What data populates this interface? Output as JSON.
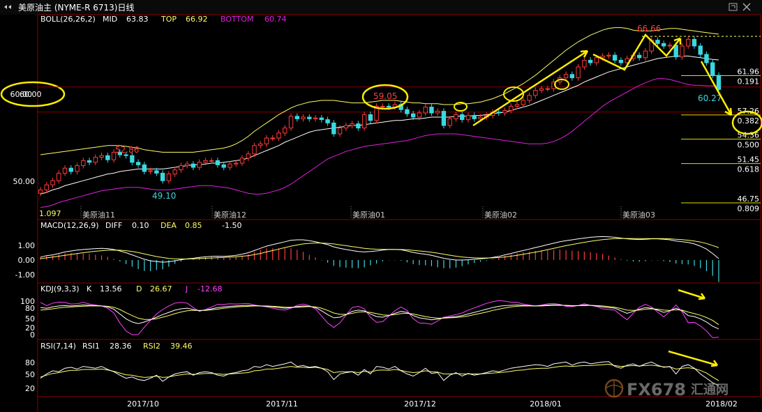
{
  "window": {
    "nav_icon": "back-forward-arrows-icon",
    "title": "美原油主 (NYME-R 6713)日线",
    "controls": [
      "restore-icon",
      "close-icon"
    ]
  },
  "colors": {
    "background": "#000000",
    "grid": "#8b0000",
    "up_candle": "#ff3b3b",
    "down_candle": "#3ad8e0",
    "mid": "#ffffff",
    "top": "#ffff66",
    "bottom": "#e020e0",
    "yellow_annot": "#ffee00",
    "label_yellow": "#e0e000",
    "label_red": "#ff4040",
    "label_cyan": "#3ad8e0",
    "label_white": "#ffffff",
    "label_magenta": "#ff40ff"
  },
  "main": {
    "indicator": "BOLL(26,26,2)",
    "legend": [
      {
        "name": "MID",
        "value": "63.83"
      },
      {
        "name": "TOP",
        "value": "66.92"
      },
      {
        "name": "BOTTOM",
        "value": "60.74"
      }
    ],
    "price_axis_labels": [
      "60.00",
      "50.00"
    ],
    "annotations": {
      "high_66": "66.66",
      "high_59": "59.05",
      "high_52": "52.86",
      "low_49": "49.10",
      "last": "60.27",
      "left_bottom": "1.097"
    },
    "fib_levels": [
      {
        "price": "61.96",
        "ratio": "0.191"
      },
      {
        "price": "57.26",
        "ratio": "0.382"
      },
      {
        "price": "54.36",
        "ratio": "0.500"
      },
      {
        "price": "51.45",
        "ratio": "0.618"
      },
      {
        "price": "46.75",
        "ratio": "0.809"
      }
    ],
    "contract_labels": [
      "美原油11",
      "美原油12",
      "美原油01",
      "美原油02",
      "美原油03"
    ],
    "circled_price": "60.00"
  },
  "macd": {
    "indicator": "MACD(12,26,9)",
    "legend": [
      {
        "name": "DIFF",
        "value": "0.10"
      },
      {
        "name": "DEA",
        "value": "0.85"
      },
      {
        "name": "",
        "value": "-1.50"
      }
    ],
    "axis_labels": [
      "1.00",
      "0.00",
      "-1.00"
    ]
  },
  "kdj": {
    "indicator": "KDJ(9,3,3)",
    "legend": [
      {
        "name": "K",
        "value": "13.56"
      },
      {
        "name": "D",
        "value": "26.67"
      },
      {
        "name": "J",
        "value": "-12.68"
      }
    ],
    "axis_labels": [
      "100",
      "80",
      "50",
      "20",
      "0"
    ]
  },
  "rsi": {
    "indicator": "RSI(7,14)",
    "legend": [
      {
        "name": "RSI1",
        "value": "28.36"
      },
      {
        "name": "RSI2",
        "value": "39.46"
      }
    ],
    "axis_labels": [
      "80",
      "50",
      "20"
    ]
  },
  "time_axis": [
    "2017/10",
    "2017/11",
    "2017/12",
    "2018/01",
    "2018/02"
  ],
  "watermark": {
    "text": "FX678",
    "cn": "汇通网",
    "icon": "globe-logo-icon"
  },
  "chart_data": {
    "type": "candlestick",
    "ylim": [
      46,
      68
    ],
    "close_series": [
      48.3,
      48.9,
      49.4,
      50.3,
      50.9,
      50.5,
      51.2,
      51.8,
      51.6,
      52.2,
      52.4,
      51.9,
      52.8,
      52.5,
      52.4,
      51.6,
      51.3,
      50.5,
      50.6,
      50.3,
      49.4,
      50.2,
      50.7,
      51.2,
      51.4,
      51.0,
      51.6,
      51.8,
      51.8,
      51.3,
      51.0,
      51.4,
      51.5,
      52.1,
      52.6,
      53.6,
      53.8,
      54.5,
      54.5,
      55.1,
      55.7,
      57.1,
      56.8,
      57.0,
      56.8,
      56.9,
      56.7,
      56.3,
      55.0,
      55.7,
      56.0,
      56.2,
      55.7,
      57.3,
      56.6,
      58.3,
      58.3,
      58.2,
      58.5,
      57.9,
      57.4,
      57.0,
      57.5,
      58.2,
      57.5,
      57.7,
      56.0,
      56.8,
      57.3,
      56.7,
      57.2,
      56.8,
      57.0,
      57.2,
      57.6,
      57.5,
      57.8,
      58.3,
      58.5,
      59.0,
      59.6,
      60.2,
      60.4,
      60.4,
      61.2,
      61.7,
      62.1,
      61.7,
      63.0,
      63.8,
      63.5,
      64.1,
      64.3,
      64.4,
      63.8,
      63.5,
      64.0,
      64.4,
      64.1,
      64.9,
      66.2,
      65.8,
      65.5,
      65.6,
      64.2,
      65.5,
      66.3,
      65.5,
      64.5,
      63.5,
      62.0,
      60.3
    ],
    "boll_mid": [
      47.8,
      48.0,
      48.3,
      48.5,
      48.8,
      49.0,
      49.2,
      49.4,
      49.6,
      49.8,
      50.0,
      50.2,
      50.3,
      50.5,
      50.6,
      50.7,
      50.8,
      50.8,
      50.8,
      50.8,
      50.8,
      50.9,
      51.0,
      51.1,
      51.2,
      51.3,
      51.3,
      51.4,
      51.5,
      51.5,
      51.6,
      51.7,
      51.8,
      51.9,
      52.1,
      52.4,
      52.7,
      53.0,
      53.3,
      53.6,
      54.0,
      54.3,
      54.6,
      54.9,
      55.2,
      55.4,
      55.5,
      55.6,
      55.7,
      55.8,
      55.9,
      56.0,
      56.0,
      56.1,
      56.2,
      56.3,
      56.4,
      56.5,
      56.6,
      56.6,
      56.7,
      56.8,
      56.8,
      56.9,
      57.0,
      57.0,
      57.0,
      57.0,
      57.1,
      57.1,
      57.1,
      57.2,
      57.2,
      57.3,
      57.4,
      57.5,
      57.6,
      57.8,
      58.0,
      58.2,
      58.4,
      58.7,
      59.0,
      59.3,
      59.6,
      59.9,
      60.2,
      60.5,
      60.8,
      61.2,
      61.5,
      61.8,
      62.1,
      62.4,
      62.6,
      62.8,
      63.0,
      63.2,
      63.4,
      63.6,
      63.8,
      64.0,
      64.1,
      64.2,
      64.3,
      64.3,
      64.3,
      64.2,
      64.1,
      64.0,
      63.9,
      63.83
    ],
    "boll_top": [
      52.5,
      52.6,
      52.7,
      52.8,
      52.9,
      53.0,
      53.1,
      53.2,
      53.3,
      53.4,
      53.5,
      53.6,
      53.6,
      53.6,
      53.5,
      53.4,
      53.3,
      53.1,
      53.0,
      52.9,
      52.8,
      52.8,
      52.8,
      52.8,
      52.8,
      52.8,
      52.9,
      53.0,
      53.1,
      53.2,
      53.3,
      53.5,
      53.8,
      54.2,
      54.7,
      55.3,
      55.8,
      56.3,
      56.8,
      57.3,
      57.7,
      58.1,
      58.4,
      58.6,
      58.8,
      58.9,
      59.0,
      59.0,
      59.0,
      58.9,
      58.8,
      58.7,
      58.7,
      58.7,
      58.8,
      58.9,
      59.0,
      59.0,
      59.0,
      58.9,
      58.8,
      58.7,
      58.7,
      58.6,
      58.6,
      58.6,
      58.5,
      58.5,
      58.5,
      58.6,
      58.6,
      58.7,
      58.8,
      59.0,
      59.2,
      59.5,
      59.8,
      60.2,
      60.6,
      61.0,
      61.5,
      62.0,
      62.6,
      63.2,
      63.8,
      64.4,
      65.0,
      65.5,
      66.0,
      66.4,
      66.8,
      67.1,
      67.4,
      67.6,
      67.7,
      67.7,
      67.6,
      67.4,
      67.3,
      67.3,
      67.3,
      67.4,
      67.5,
      67.6,
      67.6,
      67.5,
      67.4,
      67.3,
      67.2,
      67.1,
      67.0,
      66.92
    ],
    "boll_bottom": [
      46.2,
      46.3,
      46.5,
      46.8,
      47.0,
      47.2,
      47.4,
      47.6,
      47.8,
      48.0,
      48.2,
      48.3,
      48.4,
      48.5,
      48.6,
      48.6,
      48.6,
      48.5,
      48.4,
      48.3,
      48.3,
      48.3,
      48.4,
      48.5,
      48.6,
      48.7,
      48.8,
      48.8,
      48.8,
      48.7,
      48.6,
      48.5,
      48.3,
      48.1,
      47.9,
      47.8,
      47.8,
      47.9,
      48.1,
      48.3,
      48.6,
      49.0,
      49.5,
      50.0,
      50.5,
      51.0,
      51.5,
      52.0,
      52.3,
      52.6,
      52.9,
      53.1,
      53.3,
      53.5,
      53.6,
      53.7,
      53.8,
      53.9,
      54.0,
      54.1,
      54.2,
      54.4,
      54.6,
      54.8,
      54.9,
      55.0,
      55.0,
      55.0,
      55.0,
      54.9,
      54.8,
      54.7,
      54.6,
      54.5,
      54.4,
      54.3,
      54.2,
      54.1,
      54.0,
      53.9,
      53.8,
      53.8,
      53.8,
      53.9,
      54.1,
      54.4,
      54.8,
      55.3,
      55.9,
      56.5,
      57.1,
      57.7,
      58.3,
      58.8,
      59.2,
      59.6,
      60.0,
      60.4,
      60.8,
      61.1,
      61.4,
      61.6,
      61.6,
      61.5,
      61.3,
      61.1,
      60.9,
      60.8,
      60.8,
      60.75,
      60.74,
      60.74
    ],
    "fib_prices": [
      61.96,
      57.26,
      54.36,
      51.45,
      46.75
    ],
    "fib_ratios": [
      0.191,
      0.382,
      0.5,
      0.618,
      0.809
    ],
    "macd_diff": [
      0.2,
      0.3,
      0.35,
      0.45,
      0.55,
      0.62,
      0.68,
      0.72,
      0.75,
      0.78,
      0.8,
      0.78,
      0.72,
      0.62,
      0.5,
      0.35,
      0.2,
      0.05,
      -0.05,
      -0.1,
      -0.15,
      -0.12,
      -0.05,
      0.02,
      0.08,
      0.12,
      0.18,
      0.22,
      0.25,
      0.26,
      0.25,
      0.28,
      0.32,
      0.4,
      0.5,
      0.65,
      0.8,
      0.95,
      1.05,
      1.15,
      1.25,
      1.35,
      1.38,
      1.38,
      1.32,
      1.25,
      1.15,
      1.05,
      0.9,
      0.8,
      0.72,
      0.65,
      0.58,
      0.55,
      0.58,
      0.62,
      0.68,
      0.72,
      0.72,
      0.7,
      0.62,
      0.52,
      0.45,
      0.4,
      0.32,
      0.22,
      0.12,
      0.05,
      0.0,
      0.0,
      0.02,
      0.05,
      0.08,
      0.12,
      0.18,
      0.25,
      0.35,
      0.45,
      0.55,
      0.65,
      0.75,
      0.85,
      0.95,
      1.05,
      1.15,
      1.25,
      1.32,
      1.38,
      1.45,
      1.5,
      1.55,
      1.58,
      1.6,
      1.58,
      1.55,
      1.5,
      1.45,
      1.42,
      1.4,
      1.42,
      1.45,
      1.45,
      1.42,
      1.38,
      1.3,
      1.25,
      1.2,
      1.1,
      0.95,
      0.75,
      0.45,
      0.1
    ],
    "macd_dea": [
      0.1,
      0.15,
      0.2,
      0.26,
      0.32,
      0.38,
      0.44,
      0.5,
      0.55,
      0.6,
      0.64,
      0.67,
      0.68,
      0.67,
      0.64,
      0.58,
      0.51,
      0.42,
      0.33,
      0.24,
      0.17,
      0.11,
      0.08,
      0.07,
      0.07,
      0.08,
      0.1,
      0.12,
      0.14,
      0.16,
      0.18,
      0.2,
      0.22,
      0.26,
      0.3,
      0.37,
      0.45,
      0.55,
      0.65,
      0.75,
      0.85,
      0.95,
      1.03,
      1.1,
      1.14,
      1.16,
      1.16,
      1.14,
      1.1,
      1.04,
      0.98,
      0.92,
      0.86,
      0.8,
      0.76,
      0.74,
      0.73,
      0.73,
      0.73,
      0.72,
      0.7,
      0.66,
      0.62,
      0.58,
      0.53,
      0.47,
      0.4,
      0.33,
      0.26,
      0.21,
      0.17,
      0.15,
      0.14,
      0.14,
      0.15,
      0.17,
      0.21,
      0.26,
      0.32,
      0.39,
      0.46,
      0.54,
      0.62,
      0.71,
      0.8,
      0.89,
      0.98,
      1.06,
      1.14,
      1.21,
      1.28,
      1.34,
      1.39,
      1.43,
      1.46,
      1.47,
      1.47,
      1.47,
      1.46,
      1.46,
      1.46,
      1.46,
      1.46,
      1.45,
      1.42,
      1.39,
      1.35,
      1.3,
      1.23,
      1.13,
      0.99,
      0.85
    ],
    "kdj_k": [
      80,
      78,
      82,
      85,
      86,
      85,
      86,
      88,
      87,
      86,
      85,
      82,
      75,
      60,
      45,
      35,
      30,
      35,
      42,
      50,
      58,
      65,
      72,
      76,
      78,
      74,
      70,
      72,
      76,
      80,
      82,
      84,
      85,
      86,
      87,
      86,
      85,
      84,
      82,
      80,
      78,
      80,
      83,
      85,
      84,
      80,
      70,
      58,
      48,
      50,
      58,
      68,
      72,
      70,
      60,
      52,
      50,
      55,
      62,
      68,
      65,
      55,
      48,
      45,
      42,
      44,
      48,
      50,
      52,
      55,
      60,
      65,
      70,
      75,
      80,
      84,
      86,
      87,
      88,
      87,
      86,
      85,
      86,
      88,
      89,
      88,
      86,
      85,
      86,
      88,
      87,
      85,
      82,
      80,
      78,
      70,
      62,
      68,
      75,
      80,
      78,
      72,
      65,
      70,
      78,
      70,
      55,
      52,
      45,
      35,
      22,
      13.56
    ],
    "kdj_d": [
      72,
      74,
      76,
      79,
      81,
      82,
      83,
      84,
      85,
      85,
      85,
      84,
      81,
      74,
      64,
      55,
      47,
      43,
      43,
      45,
      50,
      55,
      61,
      66,
      70,
      71,
      71,
      71,
      73,
      75,
      78,
      80,
      82,
      83,
      84,
      85,
      85,
      85,
      84,
      83,
      81,
      81,
      81,
      82,
      83,
      82,
      78,
      71,
      63,
      59,
      59,
      62,
      66,
      67,
      65,
      61,
      57,
      56,
      58,
      61,
      62,
      60,
      56,
      52,
      49,
      47,
      47,
      48,
      49,
      51,
      54,
      58,
      62,
      66,
      71,
      75,
      79,
      82,
      84,
      85,
      85,
      85,
      85,
      86,
      87,
      87,
      87,
      86,
      86,
      86,
      87,
      86,
      85,
      83,
      81,
      77,
      72,
      71,
      72,
      75,
      76,
      75,
      72,
      71,
      73,
      72,
      66,
      61,
      56,
      49,
      40,
      26.67
    ],
    "kdj_j": [
      96,
      86,
      94,
      97,
      96,
      91,
      92,
      96,
      91,
      88,
      85,
      78,
      63,
      32,
      7,
      -5,
      -4,
      19,
      40,
      60,
      74,
      85,
      94,
      96,
      94,
      80,
      68,
      74,
      82,
      90,
      90,
      92,
      91,
      92,
      93,
      88,
      85,
      82,
      78,
      74,
      72,
      78,
      87,
      91,
      86,
      76,
      54,
      32,
      18,
      32,
      56,
      80,
      84,
      76,
      50,
      34,
      36,
      53,
      70,
      82,
      71,
      45,
      32,
      31,
      28,
      38,
      50,
      54,
      58,
      63,
      72,
      79,
      86,
      93,
      98,
      102,
      100,
      97,
      96,
      91,
      88,
      85,
      88,
      92,
      93,
      90,
      84,
      83,
      86,
      92,
      87,
      83,
      76,
      74,
      72,
      56,
      42,
      62,
      81,
      90,
      82,
      66,
      51,
      68,
      88,
      66,
      33,
      34,
      23,
      7,
      -14,
      -12.68
    ],
    "rsi_1": [
      45,
      55,
      62,
      60,
      68,
      70,
      66,
      72,
      70,
      68,
      72,
      65,
      60,
      52,
      45,
      48,
      42,
      40,
      45,
      52,
      38,
      48,
      55,
      58,
      60,
      52,
      58,
      60,
      58,
      52,
      50,
      56,
      58,
      62,
      64,
      72,
      70,
      76,
      72,
      75,
      78,
      82,
      72,
      74,
      70,
      72,
      68,
      60,
      42,
      55,
      58,
      60,
      52,
      65,
      55,
      72,
      70,
      66,
      72,
      62,
      55,
      50,
      58,
      68,
      56,
      58,
      40,
      52,
      58,
      50,
      56,
      52,
      55,
      58,
      62,
      60,
      64,
      68,
      70,
      72,
      74,
      76,
      75,
      72,
      78,
      80,
      82,
      75,
      80,
      82,
      78,
      80,
      82,
      83,
      72,
      68,
      75,
      78,
      72,
      78,
      82,
      75,
      70,
      72,
      55,
      72,
      76,
      68,
      55,
      45,
      35,
      28.36
    ],
    "rsi_2": [
      48,
      52,
      56,
      58,
      61,
      63,
      63,
      65,
      65,
      65,
      66,
      64,
      61,
      57,
      53,
      52,
      49,
      47,
      48,
      50,
      47,
      48,
      51,
      53,
      55,
      54,
      55,
      56,
      56,
      55,
      54,
      55,
      56,
      57,
      58,
      62,
      63,
      66,
      66,
      68,
      70,
      72,
      70,
      70,
      69,
      70,
      68,
      65,
      58,
      60,
      60,
      60,
      58,
      61,
      59,
      63,
      64,
      63,
      65,
      63,
      60,
      58,
      59,
      62,
      60,
      59,
      55,
      55,
      56,
      55,
      55,
      55,
      55,
      56,
      57,
      58,
      59,
      61,
      63,
      64,
      66,
      67,
      68,
      68,
      70,
      72,
      73,
      72,
      73,
      74,
      74,
      75,
      76,
      77,
      74,
      72,
      73,
      74,
      73,
      74,
      75,
      73,
      71,
      71,
      66,
      68,
      69,
      67,
      63,
      57,
      48,
      39.46
    ]
  }
}
